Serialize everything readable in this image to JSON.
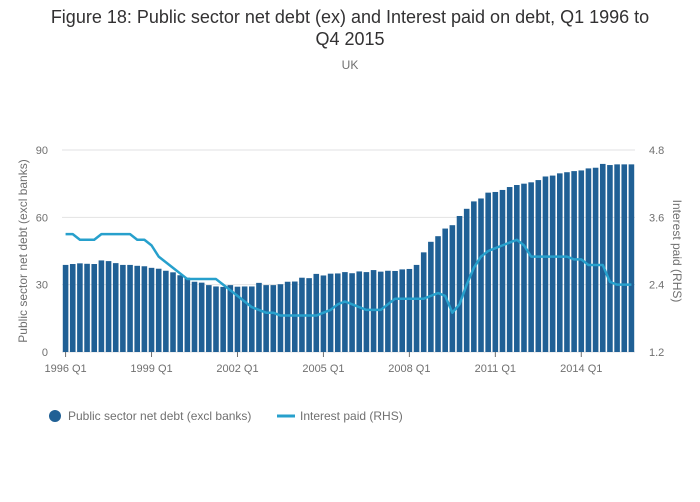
{
  "chart_data": {
    "type": "bar+line",
    "title_line1": "Figure 18: Public sector net debt (ex) and Interest paid on debt, Q1 1996 to",
    "title_line2": "Q4 2015",
    "subtitle": "UK",
    "ylabel_left": "Public sector net debt (excl banks)",
    "ylabel_right": "Interest paid (RHS)",
    "ylim_left": [
      0,
      90
    ],
    "yticks_left": [
      "0",
      "30",
      "60",
      "90"
    ],
    "ylim_right": [
      1.2,
      4.8
    ],
    "yticks_right": [
      "1.2",
      "2.4",
      "3.6",
      "4.8"
    ],
    "xtick_labels": [
      "1996 Q1",
      "1999 Q1",
      "2002 Q1",
      "2005 Q1",
      "2008 Q1",
      "2011 Q1",
      "2014 Q1"
    ],
    "xtick_indices": [
      0,
      12,
      24,
      36,
      48,
      60,
      72
    ],
    "grid": true,
    "legend_position": "bottom-left",
    "series": [
      {
        "name": "Public sector net debt (excl banks)",
        "type": "bar",
        "axis": "left",
        "color": "#206095",
        "values": [
          38.8,
          39.2,
          39.5,
          39.3,
          39.2,
          40.8,
          40.5,
          39.6,
          38.8,
          38.8,
          38.4,
          38.2,
          37.5,
          37.1,
          36.2,
          35.5,
          34.2,
          33.1,
          31.3,
          30.9,
          29.8,
          29.2,
          29.0,
          29.8,
          29.1,
          29.2,
          29.2,
          30.8,
          29.8,
          29.8,
          30.2,
          31.3,
          31.4,
          33.1,
          32.9,
          34.8,
          34.1,
          34.9,
          35.0,
          35.6,
          35.1,
          35.9,
          35.6,
          36.5,
          35.8,
          36.2,
          36.1,
          36.8,
          37.0,
          38.8,
          44.4,
          49.1,
          51.6,
          55.0,
          56.5,
          60.6,
          63.8,
          67.1,
          68.4,
          71.0,
          71.3,
          72.2,
          73.5,
          74.4,
          75.0,
          75.6,
          76.6,
          78.2,
          78.6,
          79.6,
          80.1,
          80.6,
          80.9,
          81.8,
          82.1,
          83.8,
          83.3,
          83.6,
          83.6,
          83.6
        ]
      },
      {
        "name": "Interest paid (RHS)",
        "type": "line",
        "axis": "right",
        "color": "#27a0cc",
        "values": [
          3.3,
          3.3,
          3.2,
          3.2,
          3.2,
          3.3,
          3.3,
          3.3,
          3.3,
          3.3,
          3.2,
          3.2,
          3.1,
          2.9,
          2.8,
          2.7,
          2.6,
          2.5,
          2.5,
          2.5,
          2.5,
          2.5,
          2.4,
          2.3,
          2.2,
          2.1,
          2.0,
          1.95,
          1.9,
          1.9,
          1.85,
          1.85,
          1.85,
          1.85,
          1.85,
          1.85,
          1.9,
          1.95,
          2.05,
          2.1,
          2.05,
          2.0,
          1.95,
          1.95,
          1.95,
          2.05,
          2.15,
          2.15,
          2.15,
          2.15,
          2.15,
          2.2,
          2.25,
          2.2,
          1.9,
          2.05,
          2.4,
          2.7,
          2.9,
          3.0,
          3.05,
          3.1,
          3.15,
          3.2,
          3.1,
          2.9,
          2.9,
          2.9,
          2.9,
          2.9,
          2.9,
          2.85,
          2.85,
          2.75,
          2.75,
          2.75,
          2.45,
          2.4,
          2.4,
          2.4
        ]
      }
    ]
  }
}
